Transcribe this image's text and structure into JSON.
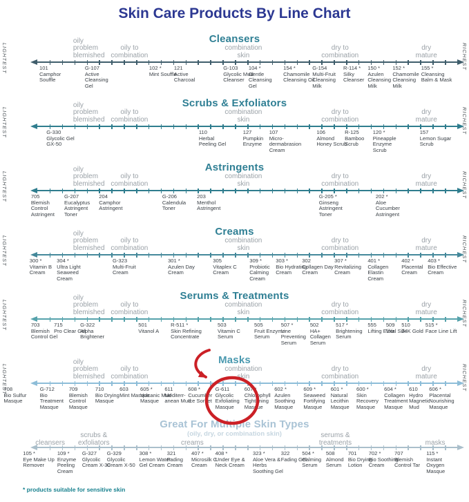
{
  "chart_data": {
    "type": "number-line",
    "title": "Skin Care Products By Line Chart",
    "footnote": "* products suitable for sensitive skin",
    "axis_endpoints": {
      "left": "LIGHTEST",
      "right": "RICHEST"
    },
    "skin_type_zones": [
      {
        "lines": [
          "oily",
          "problem",
          "blemished"
        ],
        "x": 15.6,
        "align": "left"
      },
      {
        "lines": [
          "oily to",
          "combination"
        ],
        "x": 27.6,
        "align": "center"
      },
      {
        "lines": [
          "combination",
          "skin"
        ],
        "x": 51.9,
        "align": "center"
      },
      {
        "lines": [
          "dry to",
          "combination"
        ],
        "x": 72.5,
        "align": "center"
      },
      {
        "lines": [
          "dry",
          "mature"
        ],
        "x": 90.9,
        "align": "center"
      }
    ],
    "rows": [
      {
        "header": "Cleansers",
        "header_color": "#2f7f94",
        "line_color": "#3f5d6b",
        "show_side_labels": true,
        "zones": "standard",
        "products": [
          {
            "code": "101",
            "name": "Camphor Souffle",
            "pos": 8.4
          },
          {
            "code": "G-107",
            "name": "Active Cleansing Gel",
            "pos": 18.1
          },
          {
            "code": "102 *",
            "name": "Mint Souffle",
            "pos": 31.8
          },
          {
            "code": "121",
            "name": "Active Charcoal",
            "pos": 37.1
          },
          {
            "code": "G-103",
            "name": "Glycolic Mud Cleanser",
            "pos": 47.6
          },
          {
            "code": "104 *",
            "name": "Gentle Cleansing Gel",
            "pos": 53.0
          },
          {
            "code": "154 *",
            "name": "Chamomile Cleansing Oil",
            "pos": 60.4
          },
          {
            "code": "G-154",
            "name": "Multi-Fruit Cleansing Milk",
            "pos": 66.6
          },
          {
            "code": "R-114 *",
            "name": "Silky Cleanser",
            "pos": 73.2
          },
          {
            "code": "150 *",
            "name": "Azulen Cleansing Milk",
            "pos": 78.4
          },
          {
            "code": "152 *",
            "name": "Chamomile Cleansing Milk",
            "pos": 83.7
          },
          {
            "code": "155 *",
            "name": "Cleansing Balm & Mask",
            "pos": 89.8
          }
        ]
      },
      {
        "header": "Scrubs & Exfoliators",
        "header_color": "#2f7f94",
        "line_color": "#2f7d8e",
        "show_side_labels": true,
        "zones": "standard",
        "products": [
          {
            "code": "G-330",
            "name": "Glycolic Gel GX-50",
            "pos": 9.9
          },
          {
            "code": "110",
            "name": "Herbal Peeling Gel",
            "pos": 42.4
          },
          {
            "code": "127",
            "name": "Pumpkin Enzyme",
            "pos": 51.8
          },
          {
            "code": "107",
            "name": "Micro- dermabrasion Cream",
            "pos": 57.4
          },
          {
            "code": "106",
            "name": "Almond Honey Scrub",
            "pos": 67.5
          },
          {
            "code": "R-125",
            "name": "Bamboo Scrub",
            "pos": 73.5
          },
          {
            "code": "120 *",
            "name": "Pineapple Enzyme Scrub",
            "pos": 79.5
          },
          {
            "code": "157",
            "name": "Lemon Sugar Scrub",
            "pos": 89.5
          }
        ]
      },
      {
        "header": "Astringents",
        "header_color": "#2f7f94",
        "line_color": "#2f7d8e",
        "show_side_labels": true,
        "zones": "standard",
        "products": [
          {
            "code": "705",
            "name": "Blemish Control Astringent",
            "pos": 6.6
          },
          {
            "code": "G-207",
            "name": "Eucalyptus Astringent Toner",
            "pos": 13.7
          },
          {
            "code": "204",
            "name": "Camphor Astringent",
            "pos": 21.1
          },
          {
            "code": "G-206",
            "name": "Calendula Toner",
            "pos": 34.6
          },
          {
            "code": "203",
            "name": "Menthol Astringent",
            "pos": 42.0
          },
          {
            "code": "G-205 *",
            "name": "Ginseng Astringent Toner",
            "pos": 68.0
          },
          {
            "code": "202 *",
            "name": "Aloe Cucumber Astringent",
            "pos": 80.1
          }
        ]
      },
      {
        "header": "Creams",
        "header_color": "#2f7f94",
        "line_color": "#44889a",
        "show_side_labels": true,
        "zones": "standard",
        "products": [
          {
            "code": "300 *",
            "name": "Vitamin B Cream",
            "pos": 6.3
          },
          {
            "code": "304 *",
            "name": "Ultra Light Seaweed Cream",
            "pos": 12.1
          },
          {
            "code": "G-323",
            "name": "Multi-Fruit Cream",
            "pos": 24.0
          },
          {
            "code": "301 *",
            "name": "Azulen Day Cream",
            "pos": 35.8
          },
          {
            "code": "305",
            "name": "Vitaplex C Cream",
            "pos": 45.4
          },
          {
            "code": "309 *",
            "name": "Probiotic Calming Cream",
            "pos": 53.2
          },
          {
            "code": "303 *",
            "name": "Bio Hydrating Cream",
            "pos": 58.8
          },
          {
            "code": "302",
            "name": "Collagen Day Cream",
            "pos": 64.4
          },
          {
            "code": "307 *",
            "name": "Revitalizing Cream",
            "pos": 71.3
          },
          {
            "code": "401 *",
            "name": "Collagen Elastin Cream",
            "pos": 78.4
          },
          {
            "code": "402 *",
            "name": "Placental Cream",
            "pos": 85.6
          },
          {
            "code": "403 *",
            "name": "Bio Effective Cream",
            "pos": 91.2
          }
        ]
      },
      {
        "header": "Serums & Treatments",
        "header_color": "#2f7f94",
        "line_color": "#55a2ab",
        "show_side_labels": true,
        "zones": "standard",
        "products": [
          {
            "code": "703",
            "name": "Blemish Control Gel",
            "pos": 6.6
          },
          {
            "code": "715",
            "name": "Pro Clear Gel",
            "pos": 11.5
          },
          {
            "code": "G-322",
            "name": "Alpha Brightener",
            "pos": 17.1
          },
          {
            "code": "501",
            "name": "Vitanol A",
            "pos": 29.5
          },
          {
            "code": "R-511 *",
            "name": "Skin Refining Concentrate",
            "pos": 36.4
          },
          {
            "code": "503",
            "name": "Vitamin C Serum",
            "pos": 46.4
          },
          {
            "code": "505",
            "name": "Fruit Enzyme Serum",
            "pos": 54.2
          },
          {
            "code": "507 *",
            "name": "Line Preventing Serum",
            "pos": 59.9
          },
          {
            "code": "502",
            "name": "HA+ Collagen Serum",
            "pos": 66.1
          },
          {
            "code": "517 *",
            "name": "Brightening Serum",
            "pos": 71.6
          },
          {
            "code": "555",
            "name": "Lifting Elixir",
            "pos": 78.4
          },
          {
            "code": "509",
            "name": "Vital Silk",
            "pos": 82.3
          },
          {
            "code": "510",
            "name": "24K Gold",
            "pos": 85.6
          },
          {
            "code": "515 *",
            "name": "Face Line Lift",
            "pos": 90.7
          }
        ]
      },
      {
        "header": "Masks",
        "header_color": "#4a99af",
        "line_color": "#8dbdd8",
        "show_side_labels": true,
        "zones": "standard",
        "products": [
          {
            "code": "708",
            "name": "Bio Sulfur Masque",
            "pos": 0.8
          },
          {
            "code": "G-712",
            "name": "Bio Treatment Masque",
            "pos": 8.5
          },
          {
            "code": "709",
            "name": "Blemish Control Masque",
            "pos": 14.7
          },
          {
            "code": "710",
            "name": "Bio Drying Masque",
            "pos": 20.3
          },
          {
            "code": "603",
            "name": "Mint Masque",
            "pos": 25.5
          },
          {
            "code": "605 *",
            "name": "Volcanic Mud Masque",
            "pos": 29.9
          },
          {
            "code": "611",
            "name": "Mediterr- anean Mud",
            "pos": 35.1
          },
          {
            "code": "608 *",
            "name": "Cucumber Ice Sorbet",
            "pos": 40.1
          },
          {
            "code": "G-611",
            "name": "Glycolic Exfoliating Masque",
            "pos": 45.9,
            "highlighted": true
          },
          {
            "code": "607 *",
            "name": "Chlorophyll Tightening Masque",
            "pos": 52.1
          },
          {
            "code": "602 *",
            "name": "Azulen Soothing Masque",
            "pos": 58.5
          },
          {
            "code": "609 *",
            "name": "Seaweed Fortifying Masque",
            "pos": 64.7
          },
          {
            "code": "601 *",
            "name": "Natural Lecithin Masque",
            "pos": 70.5
          },
          {
            "code": "600 *",
            "name": "Skin Recovery Masque",
            "pos": 76.0
          },
          {
            "code": "604 *",
            "name": "Collagen Treatment Masque",
            "pos": 81.9
          },
          {
            "code": "610",
            "name": "Hydro Magnetic Mud",
            "pos": 87.2
          },
          {
            "code": "606 *",
            "name": "Placental Nourishing Masque",
            "pos": 91.5
          }
        ]
      },
      {
        "header": "Great For Multiple Skin Types",
        "header_color": "#a9c3d5",
        "subtitle": "(oily, dry, or combination skin)",
        "line_color": "#aabfcb",
        "show_side_labels": false,
        "zones": [
          {
            "lines": [
              "cleansers"
            ],
            "x": 10.7,
            "align": "center"
          },
          {
            "lines": [
              "scrubs &",
              "exfoliators"
            ],
            "x": 20.0,
            "align": "center"
          },
          {
            "lines": [
              "creams"
            ],
            "x": 41.0,
            "align": "center"
          },
          {
            "lines": [
              "serums &",
              "treatments"
            ],
            "x": 71.5,
            "align": "center"
          },
          {
            "lines": [
              "masks"
            ],
            "x": 92.8,
            "align": "center"
          }
        ],
        "products": [
          {
            "code": "105 *",
            "name": "Eye Make Up Remover",
            "pos": 4.9
          },
          {
            "code": "109 *",
            "name": "Enzyme Peeling Cream",
            "pos": 12.2
          },
          {
            "code": "G-327",
            "name": "Glycolic Cream X-30",
            "pos": 17.5
          },
          {
            "code": "G-329",
            "name": "Glycolic Cream X-50",
            "pos": 22.8
          },
          {
            "code": "308 *",
            "name": "Lemon Water Gel Cream",
            "pos": 29.7
          },
          {
            "code": "321",
            "name": "Fading Cream",
            "pos": 35.6
          },
          {
            "code": "407 *",
            "name": "Microsilk C Cream",
            "pos": 40.8
          },
          {
            "code": "408 *",
            "name": "Under Eye & Neck Cream",
            "pos": 45.9
          },
          {
            "code": "323 *",
            "name": "Aloe Vera & Herbs Soothing Gel",
            "pos": 53.9
          },
          {
            "code": "322",
            "name": "Fading Gel",
            "pos": 59.9
          },
          {
            "code": "504 *",
            "name": "Calming Serum",
            "pos": 64.4
          },
          {
            "code": "508",
            "name": "Almond Serum",
            "pos": 69.5
          },
          {
            "code": "701",
            "name": "Bio Drying Lotion",
            "pos": 74.2
          },
          {
            "code": "702 *",
            "name": "Bio Soothing Cream",
            "pos": 78.6
          },
          {
            "code": "707",
            "name": "Blemish Control Tar",
            "pos": 84.1
          },
          {
            "code": "115 *",
            "name": "Instant Oxygen Masque",
            "pos": 90.9
          }
        ]
      }
    ],
    "highlight": {
      "product_code": "G-611",
      "annotation": "red circle with curved arrow",
      "color": "#cb2026"
    },
    "colors": {
      "title": "#2c3892",
      "section_header": "#2f7f94",
      "zone_label": "#9aa1a7",
      "product_text": "#3b4147",
      "footnote": "#17808e"
    }
  }
}
